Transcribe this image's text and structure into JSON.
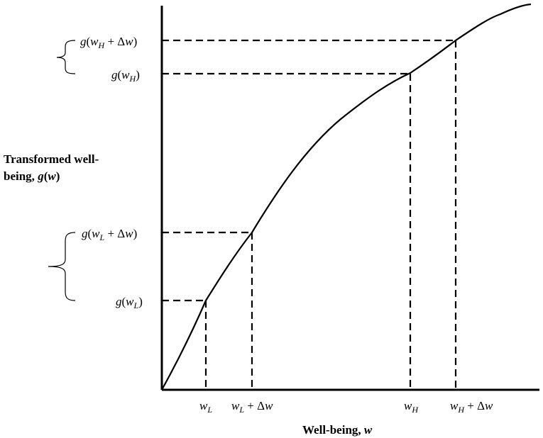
{
  "figure": {
    "y_axis_title_line1": "Transformed well-",
    "y_axis_title_line2_prefix": "being, ",
    "y_axis_title_line2_g": "g",
    "y_axis_title_line2_open": "(",
    "y_axis_title_line2_w": "w",
    "y_axis_title_line2_close": ")",
    "x_axis_title_prefix": "Well-being, ",
    "x_axis_title_w": "w",
    "y_labels": {
      "g_wH_plus_dw": {
        "g": "g",
        "open": "(",
        "w": "w",
        "sub": "H",
        "plus": " + ",
        "delta": "Δ",
        "dw": "w",
        "close": ")"
      },
      "g_wH": {
        "g": "g",
        "open": "(",
        "w": "w",
        "sub": "H",
        "close": ")"
      },
      "g_wL_plus_dw": {
        "g": "g",
        "open": "(",
        "w": "w",
        "sub": "L",
        "plus": " + ",
        "delta": "Δ",
        "dw": "w",
        "close": ")"
      },
      "g_wL": {
        "g": "g",
        "open": "(",
        "w": "w",
        "sub": "L",
        "close": ")"
      }
    },
    "x_labels": {
      "wL": {
        "w": "w",
        "sub": "L"
      },
      "wL_plus_dw": {
        "w": "w",
        "sub": "L",
        "plus": " + ",
        "delta": "Δ",
        "dw": "w"
      },
      "wH": {
        "w": "w",
        "sub": "H"
      },
      "wH_plus_dw": {
        "w": "w",
        "sub": "H",
        "plus": " + ",
        "delta": "Δ",
        "dw": "w"
      }
    }
  }
}
